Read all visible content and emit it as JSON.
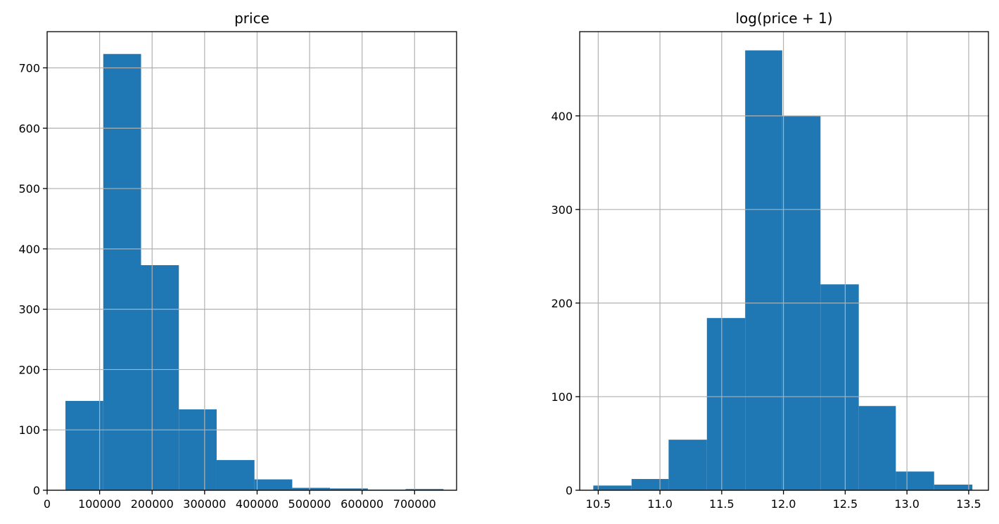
{
  "chart_data": [
    {
      "type": "bar",
      "title": "price",
      "xlabel": "",
      "ylabel": "",
      "xlim": [
        0,
        780000
      ],
      "ylim": [
        0,
        760
      ],
      "bin_edges": [
        34900,
        106910,
        178920,
        250930,
        322940,
        394950,
        466960,
        538970,
        610980,
        682990,
        755000
      ],
      "values": [
        148,
        723,
        373,
        134,
        50,
        18,
        4,
        3,
        1,
        2
      ],
      "xticks": [
        0,
        100000,
        200000,
        300000,
        400000,
        500000,
        600000,
        700000
      ],
      "xtick_labels": [
        "0",
        "100000",
        "200000",
        "300000",
        "400000",
        "500000",
        "600000",
        "700000"
      ],
      "yticks": [
        0,
        100,
        200,
        300,
        400,
        500,
        600,
        700
      ],
      "ytick_labels": [
        "0",
        "100",
        "200",
        "300",
        "400",
        "500",
        "600",
        "700"
      ],
      "grid": true,
      "color": "#1f77b4"
    },
    {
      "type": "bar",
      "title": "log(price + 1)",
      "xlabel": "",
      "ylabel": "",
      "xlim": [
        10.35,
        13.66
      ],
      "ylim": [
        0,
        490
      ],
      "bin_edges": [
        10.46,
        10.77,
        11.07,
        11.38,
        11.69,
        11.99,
        12.3,
        12.61,
        12.91,
        13.22,
        13.53
      ],
      "values": [
        5,
        12,
        54,
        184,
        470,
        400,
        220,
        90,
        20,
        6
      ],
      "xticks": [
        10.5,
        11.0,
        11.5,
        12.0,
        12.5,
        13.0,
        13.5
      ],
      "xtick_labels": [
        "10.5",
        "11.0",
        "11.5",
        "12.0",
        "12.5",
        "13.0",
        "13.5"
      ],
      "yticks": [
        0,
        100,
        200,
        300,
        400
      ],
      "ytick_labels": [
        "0",
        "100",
        "200",
        "300",
        "400"
      ],
      "grid": true,
      "color": "#1f77b4"
    }
  ]
}
